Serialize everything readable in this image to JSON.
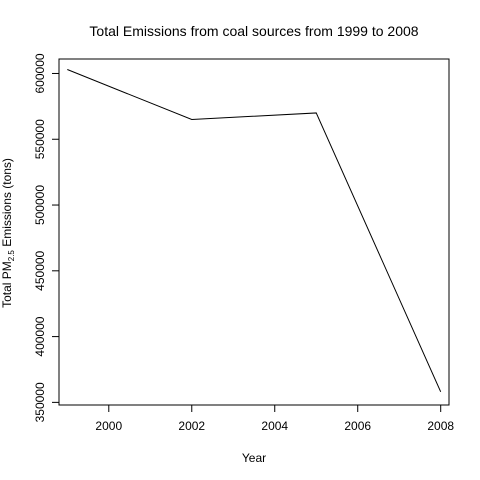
{
  "chart_data": {
    "type": "line",
    "title": "Total Emissions from coal sources from 1999 to 2008",
    "xlabel": "Year",
    "ylabel_prefix": "Total PM",
    "ylabel_subscript": "2.5",
    "ylabel_suffix": " Emissions (tons)",
    "x": [
      1999,
      2002,
      2005,
      2008
    ],
    "y": [
      603000,
      565000,
      570000,
      358000
    ],
    "xlim": [
      1998.8,
      2008.2
    ],
    "ylim": [
      348000,
      611000
    ],
    "x_ticks": [
      "2000",
      "2002",
      "2004",
      "2006",
      "2008"
    ],
    "y_ticks": [
      "350000",
      "400000",
      "450000",
      "500000",
      "550000",
      "600000"
    ],
    "grid": false,
    "legend": "none",
    "line_color": "#000000"
  }
}
